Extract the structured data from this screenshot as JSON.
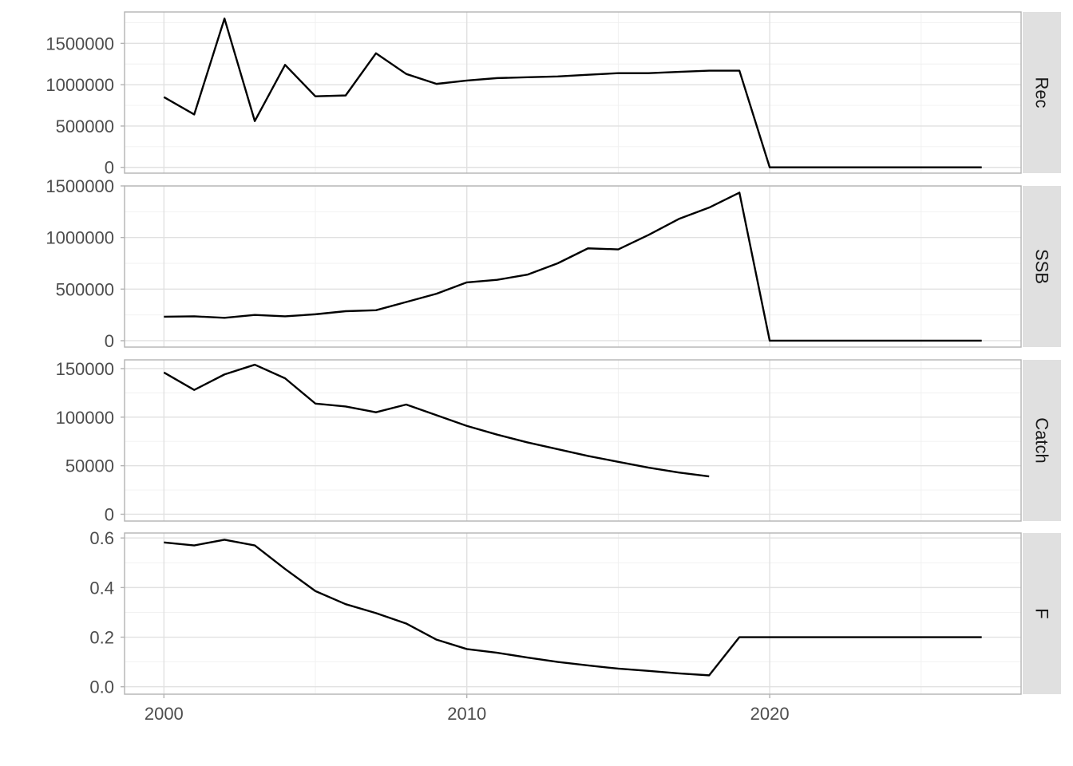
{
  "chart_data": {
    "type": "line",
    "x": [
      2000,
      2001,
      2002,
      2003,
      2004,
      2005,
      2006,
      2007,
      2008,
      2009,
      2010,
      2011,
      2012,
      2013,
      2014,
      2015,
      2016,
      2017,
      2018,
      2019,
      2020,
      2021,
      2022,
      2023,
      2024,
      2025,
      2026,
      2027
    ],
    "xlim": [
      1998.7,
      2028.3
    ],
    "x_ticks": [
      2000,
      2010,
      2020
    ],
    "x_tick_labels": [
      "2000",
      "2010",
      "2020"
    ],
    "grid": true,
    "panels": [
      {
        "strip": "Rec",
        "ylim": [
          -70000,
          1880000
        ],
        "y_ticks": [
          0,
          500000,
          1000000,
          1500000
        ],
        "y_tick_labels": [
          "0",
          "500000",
          "1000000",
          "1500000"
        ],
        "values": [
          850000,
          640000,
          1800000,
          560000,
          1240000,
          860000,
          870000,
          1380000,
          1130000,
          1010000,
          1050000,
          1080000,
          1090000,
          1100000,
          1120000,
          1140000,
          1140000,
          1155000,
          1170000,
          1170000,
          0,
          0,
          0,
          0,
          0,
          0,
          0,
          0
        ]
      },
      {
        "strip": "SSB",
        "ylim": [
          -62000,
          1500000
        ],
        "y_ticks": [
          0,
          500000,
          1000000,
          1500000
        ],
        "y_tick_labels": [
          "0",
          "500000",
          "1000000",
          "1500000"
        ],
        "values": [
          232000,
          236000,
          222000,
          250000,
          236000,
          256000,
          286000,
          295000,
          375000,
          455000,
          565000,
          590000,
          640000,
          750000,
          895000,
          885000,
          1025000,
          1180000,
          1290000,
          1435000,
          0,
          0,
          0,
          0,
          0,
          0,
          0,
          0
        ]
      },
      {
        "strip": "Catch",
        "ylim": [
          -7000,
          159000
        ],
        "y_ticks": [
          0,
          50000,
          100000,
          150000
        ],
        "y_tick_labels": [
          "0",
          "50000",
          "100000",
          "150000"
        ],
        "values": [
          146000,
          128000,
          144000,
          154000,
          140000,
          114000,
          111000,
          105000,
          113000,
          102000,
          91000,
          82000,
          74000,
          67000,
          60000,
          54000,
          48000,
          43000,
          39000,
          null,
          null,
          null,
          null,
          null,
          null,
          null,
          null,
          null
        ]
      },
      {
        "strip": "F",
        "ylim": [
          -0.03,
          0.62
        ],
        "y_ticks": [
          0,
          0.2,
          0.4,
          0.6
        ],
        "y_tick_labels": [
          "0.0",
          "0.2",
          "0.4",
          "0.6"
        ],
        "values": [
          0.582,
          0.57,
          0.593,
          0.57,
          0.475,
          0.386,
          0.333,
          0.297,
          0.255,
          0.19,
          0.152,
          0.137,
          0.118,
          0.1,
          0.086,
          0.073,
          0.064,
          0.054,
          0.046,
          0.2,
          0.2,
          0.2,
          0.2,
          0.2,
          0.2,
          0.2,
          0.2,
          0.2
        ]
      }
    ]
  }
}
